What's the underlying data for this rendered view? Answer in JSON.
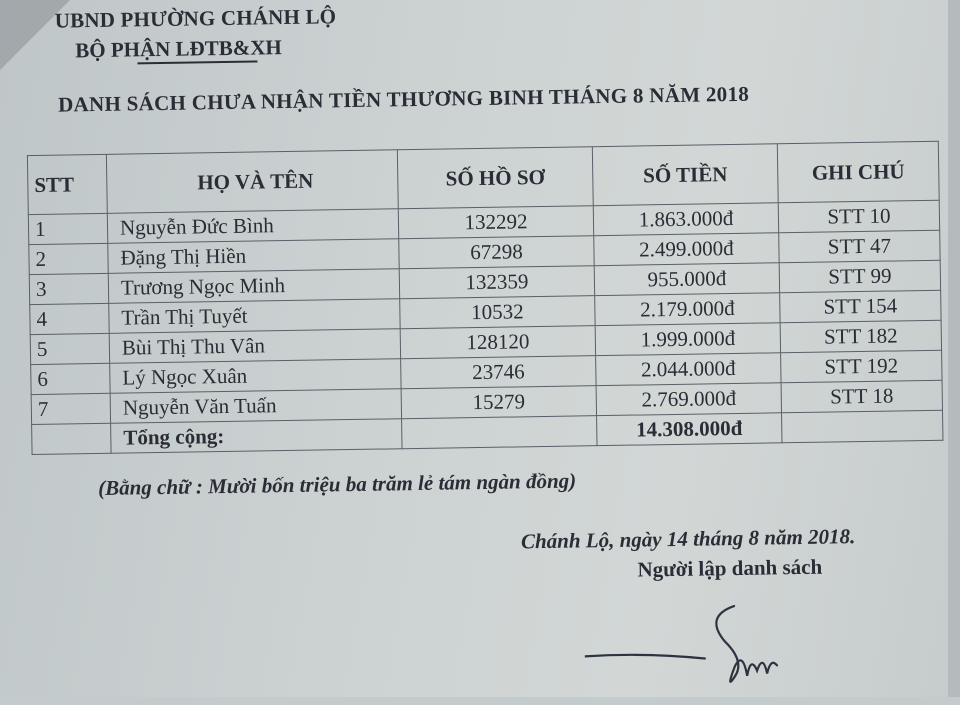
{
  "header": {
    "authority": "UBND PHƯỜNG CHÁNH LỘ",
    "department": "BỘ PHẬN LĐTB&XH",
    "title": "DANH SÁCH CHƯA NHẬN TIỀN THƯƠNG BINH THÁNG 8 NĂM 2018"
  },
  "table": {
    "columns": [
      "STT",
      "HỌ VÀ TÊN",
      "SỐ HỒ SƠ",
      "SỐ TIỀN",
      "GHI CHÚ"
    ],
    "rows": [
      [
        "1",
        "Nguyễn Đức Bình",
        "132292",
        "1.863.000đ",
        "STT 10"
      ],
      [
        "2",
        "Đặng Thị Hiền",
        "67298",
        "2.499.000đ",
        "STT 47"
      ],
      [
        "3",
        "Trương Ngọc Minh",
        "132359",
        "955.000đ",
        "STT 99"
      ],
      [
        "4",
        "Trần Thị Tuyết",
        "10532",
        "2.179.000đ",
        "STT 154"
      ],
      [
        "5",
        "Bùi Thị Thu Vân",
        "128120",
        "1.999.000đ",
        "STT 182"
      ],
      [
        "6",
        "Lý Ngọc Xuân",
        "23746",
        "2.044.000đ",
        "STT 192"
      ],
      [
        "7",
        "Nguyễn Văn Tuấn",
        "15279",
        "2.769.000đ",
        "STT 18"
      ]
    ],
    "total_label": "Tổng cộng:",
    "total_value": "14.308.000đ"
  },
  "amount_in_words": "(Bằng chữ : Mười bốn triệu ba trăm lẻ tám ngàn đồng)",
  "place_date": "Chánh Lộ, ngày 14 tháng 8 năm 2018.",
  "signer_title": "Người lập danh sách"
}
